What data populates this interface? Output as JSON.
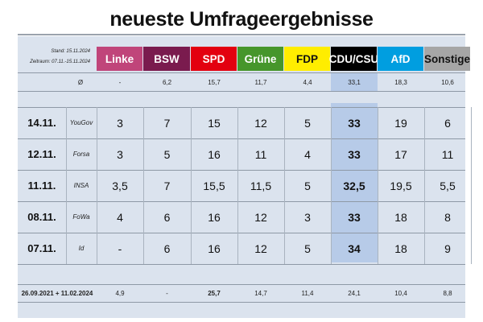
{
  "title": "neueste Umfrageergebnisse",
  "meta": {
    "stand": "Stand: 15.11.2024",
    "zeitraum": "Zeitraum: 07.11.-15.11.2024"
  },
  "parties": [
    {
      "label": "Linke",
      "color": "#c0457a",
      "text": "#ffffff"
    },
    {
      "label": "BSW",
      "color": "#7a1b4e",
      "text": "#ffffff"
    },
    {
      "label": "SPD",
      "color": "#e3000f",
      "text": "#ffffff"
    },
    {
      "label": "Grüne",
      "color": "#46962b",
      "text": "#ffffff"
    },
    {
      "label": "FDP",
      "color": "#ffed00",
      "text": "#111111"
    },
    {
      "label": "CDU/CSU",
      "color": "#000000",
      "text": "#ffffff"
    },
    {
      "label": "AfD",
      "color": "#009ee0",
      "text": "#ffffff"
    },
    {
      "label": "Sonstige",
      "color": "#a6a6a6",
      "text": "#111111"
    }
  ],
  "average": {
    "label": "Ø",
    "values": [
      "-",
      "6,2",
      "15,7",
      "11,7",
      "4,4",
      "33,1",
      "18,3",
      "10,6"
    ]
  },
  "polls": [
    {
      "date": "14.11.",
      "institute": "YouGov",
      "values": [
        "3",
        "7",
        "15",
        "12",
        "5",
        "33",
        "19",
        "6"
      ]
    },
    {
      "date": "12.11.",
      "institute": "Forsa",
      "values": [
        "3",
        "5",
        "16",
        "11",
        "4",
        "33",
        "17",
        "11"
      ]
    },
    {
      "date": "11.11.",
      "institute": "INSA",
      "values": [
        "3,5",
        "7",
        "15,5",
        "11,5",
        "5",
        "32,5",
        "19,5",
        "5,5"
      ]
    },
    {
      "date": "08.11.",
      "institute": "FoWa",
      "values": [
        "4",
        "6",
        "16",
        "12",
        "3",
        "33",
        "18",
        "8"
      ]
    },
    {
      "date": "07.11.",
      "institute": "Id",
      "values": [
        "-",
        "6",
        "16",
        "12",
        "5",
        "34",
        "18",
        "9"
      ]
    }
  ],
  "footer": {
    "label": "26.09.2021 + 11.02.2024",
    "values": [
      "4,9",
      "-",
      "25,7",
      "14,7",
      "11,4",
      "24,1",
      "10,4",
      "8,8"
    ]
  }
}
